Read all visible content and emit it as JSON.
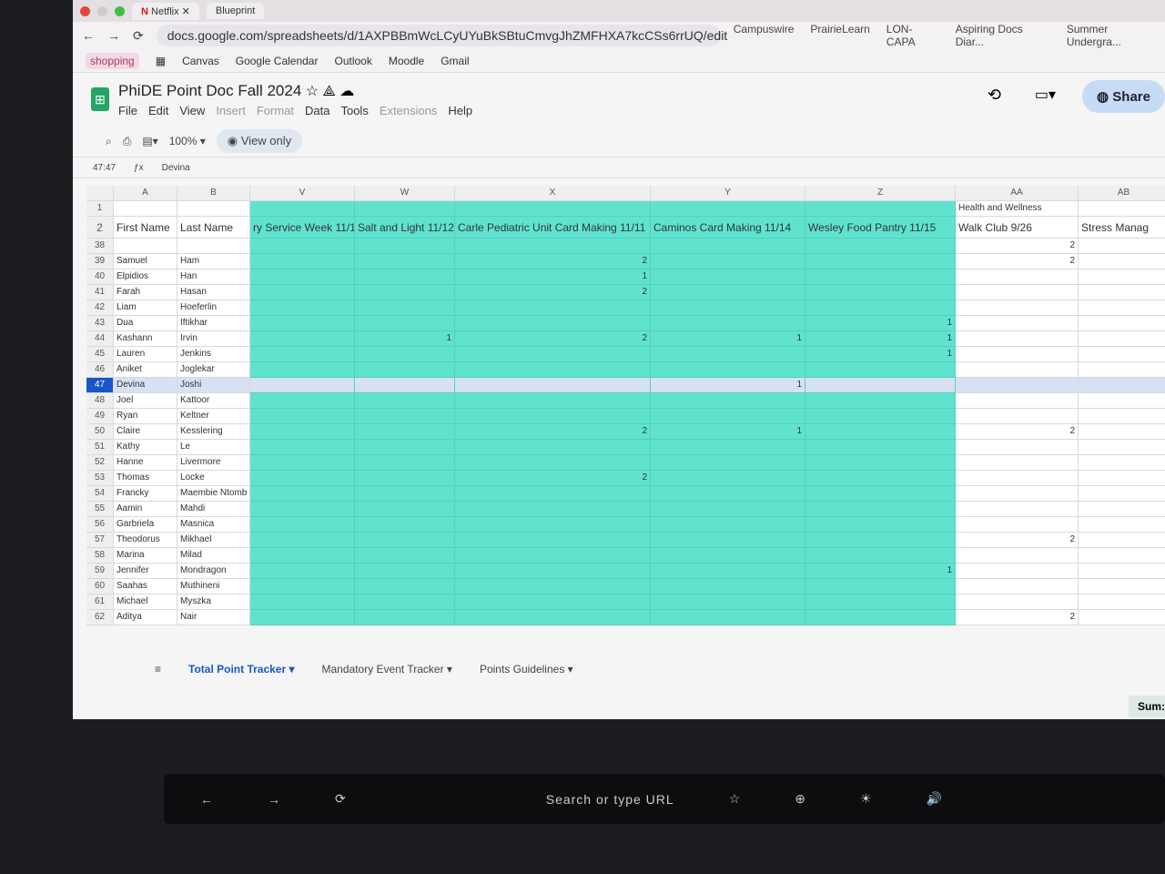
{
  "browser": {
    "tabs": [
      "Netflix",
      "Blueprint"
    ],
    "url": "docs.google.com/spreadsheets/d/1AXPBBmWcLCyUYuBkSBtuCmvgJhZMFHXA7kcCSs6rrUQ/edit",
    "top_bookmarks": [
      "Campuswire",
      "PrairieLearn",
      "LON-CAPA",
      "Aspiring Docs Diar...",
      "Summer Undergra..."
    ],
    "bookmarks": [
      "shopping",
      "Canvas",
      "Google Calendar",
      "Outlook",
      "Moodle",
      "Gmail"
    ]
  },
  "doc": {
    "title": "PhiDE Point Doc Fall 2024",
    "menus": [
      "File",
      "Edit",
      "View",
      "Insert",
      "Format",
      "Data",
      "Tools",
      "Extensions",
      "Help"
    ],
    "share": "Share"
  },
  "toolbar": {
    "zoom": "100%",
    "view_only": "View only"
  },
  "formula_bar": {
    "cell_ref": "47:47",
    "value": "Devina"
  },
  "grid": {
    "col_letters": [
      "",
      "A",
      "B",
      "V",
      "W",
      "X",
      "Y",
      "Z",
      "AA",
      "AB"
    ],
    "row1": [
      "1",
      "",
      "",
      "",
      "",
      "",
      "",
      "",
      "Health and Wellness",
      ""
    ],
    "row2": [
      "2",
      "First Name",
      "Last Name",
      "ry Service Week 11/13",
      "Salt and Light 11/12",
      "Carle Pediatric Unit Card Making 11/11",
      "Caminos Card Making 11/14",
      "Wesley Food Pantry 11/15",
      "Walk Club 9/26",
      "Stress Manag"
    ],
    "rows": [
      [
        "38",
        "",
        "",
        "",
        "",
        "",
        "",
        "",
        "2",
        ""
      ],
      [
        "39",
        "Samuel",
        "Ham",
        "",
        "",
        "2",
        "",
        "",
        "2",
        ""
      ],
      [
        "40",
        "Elpidios",
        "Han",
        "",
        "",
        "1",
        "",
        "",
        "",
        ""
      ],
      [
        "41",
        "Farah",
        "Hasan",
        "",
        "",
        "2",
        "",
        "",
        "",
        ""
      ],
      [
        "42",
        "Liam",
        "Hoeferlin",
        "",
        "",
        "",
        "",
        "",
        "",
        ""
      ],
      [
        "43",
        "Dua",
        "Iftikhar",
        "",
        "",
        "",
        "",
        "1",
        "",
        ""
      ],
      [
        "44",
        "Kashann",
        "Irvin",
        "",
        "1",
        "2",
        "1",
        "1",
        "",
        ""
      ],
      [
        "45",
        "Lauren",
        "Jenkins",
        "",
        "",
        "",
        "",
        "1",
        "",
        ""
      ],
      [
        "46",
        "Aniket",
        "Joglekar",
        "",
        "",
        "",
        "",
        "",
        "",
        ""
      ],
      [
        "47",
        "Devina",
        "Joshi",
        "",
        "",
        "",
        "1",
        "",
        "",
        ""
      ],
      [
        "48",
        "Joel",
        "Kattoor",
        "",
        "",
        "",
        "",
        "",
        "",
        ""
      ],
      [
        "49",
        "Ryan",
        "Keltner",
        "",
        "",
        "",
        "",
        "",
        "",
        ""
      ],
      [
        "50",
        "Claire",
        "Kesslering",
        "",
        "",
        "2",
        "1",
        "",
        "2",
        ""
      ],
      [
        "51",
        "Kathy",
        "Le",
        "",
        "",
        "",
        "",
        "",
        "",
        ""
      ],
      [
        "52",
        "Hanne",
        "Livermore",
        "",
        "",
        "",
        "",
        "",
        "",
        ""
      ],
      [
        "53",
        "Thomas",
        "Locke",
        "",
        "",
        "2",
        "",
        "",
        "",
        ""
      ],
      [
        "54",
        "Francky",
        "Maembie Ntomb",
        "",
        "",
        "",
        "",
        "",
        "",
        ""
      ],
      [
        "55",
        "Aamin",
        "Mahdi",
        "",
        "",
        "",
        "",
        "",
        "",
        ""
      ],
      [
        "56",
        "Garbriela",
        "Masnica",
        "",
        "",
        "",
        "",
        "",
        "",
        ""
      ],
      [
        "57",
        "Theodorus",
        "Mikhael",
        "",
        "",
        "",
        "",
        "",
        "2",
        ""
      ],
      [
        "58",
        "Marina",
        "Milad",
        "",
        "",
        "",
        "",
        "",
        "",
        ""
      ],
      [
        "59",
        "Jennifer",
        "Mondragon",
        "",
        "",
        "",
        "",
        "1",
        "",
        ""
      ],
      [
        "60",
        "Saahas",
        "Muthineni",
        "",
        "",
        "",
        "",
        "",
        "",
        ""
      ],
      [
        "61",
        "Michael",
        "Myszka",
        "",
        "",
        "",
        "",
        "",
        "",
        ""
      ],
      [
        "62",
        "Aditya",
        "Nair",
        "",
        "",
        "",
        "",
        "",
        "2",
        ""
      ]
    ],
    "selected_row": "47",
    "highlight_color": "#5fe3cf"
  },
  "sheet_tabs": [
    "Total Point Tracker",
    "Mandatory Event Tracker",
    "Points Guidelines"
  ],
  "status": {
    "sum": "Sum:"
  },
  "touchbar": {
    "search": "Search or type URL"
  }
}
